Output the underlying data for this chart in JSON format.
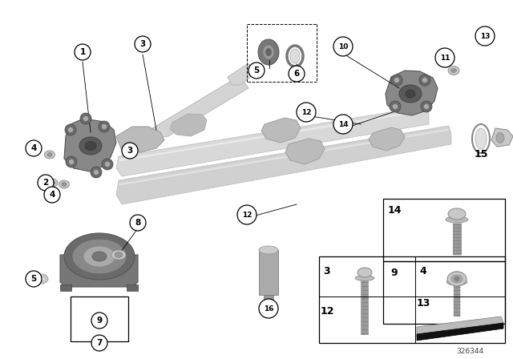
{
  "background_color": "#ffffff",
  "fig_width": 6.4,
  "fig_height": 4.48,
  "dpi": 100,
  "ref_number": "326344",
  "shaft_light": "#d4d4d4",
  "shaft_mid": "#bbbbbb",
  "shaft_dark": "#999999",
  "flange_dark": "#7a7a7a",
  "flange_mid": "#999999",
  "metal_light": "#c8c8c8",
  "metal_dark": "#666666",
  "label_fs": 8,
  "small_label_fs": 7
}
